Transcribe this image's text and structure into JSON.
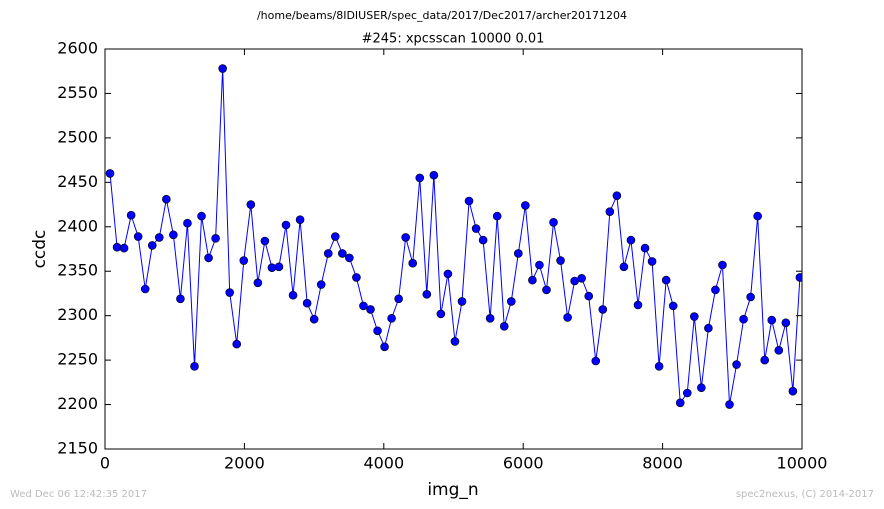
{
  "chart_data": {
    "type": "line",
    "suptitle": "/home/beams/8IDIUSER/spec_data/2017/Dec2017/archer20171204",
    "title": "#245: xpcsscan 10000 0.01",
    "x_label": "img_n",
    "y_label": "ccdc",
    "footer_left": "Wed Dec 06 12:42:35 2017",
    "footer_right": "spec2nexus, (C) 2014-2017",
    "x": [
      72,
      173,
      274,
      375,
      476,
      577,
      678,
      779,
      880,
      981,
      1082,
      1183,
      1284,
      1385,
      1486,
      1587,
      1688,
      1789,
      1890,
      1991,
      2092,
      2193,
      2294,
      2395,
      2496,
      2597,
      2698,
      2799,
      2900,
      3001,
      3102,
      3203,
      3304,
      3405,
      3506,
      3607,
      3708,
      3809,
      3910,
      4011,
      4112,
      4213,
      4314,
      4415,
      4516,
      4617,
      4718,
      4819,
      4920,
      5021,
      5122,
      5223,
      5324,
      5425,
      5526,
      5627,
      5728,
      5829,
      5930,
      6031,
      6132,
      6233,
      6334,
      6435,
      6536,
      6637,
      6738,
      6839,
      6940,
      7041,
      7142,
      7243,
      7344,
      7445,
      7546,
      7647,
      7748,
      7849,
      7950,
      8051,
      8152,
      8253,
      8354,
      8455,
      8556,
      8657,
      8758,
      8859,
      8960,
      9061,
      9162,
      9263,
      9364,
      9465,
      9566,
      9667,
      9768,
      9869,
      9970
    ],
    "series": [
      {
        "color": "#0000ff",
        "values": [
          2460,
          2377,
          2376,
          2413,
          2389,
          2330,
          2379,
          2388,
          2431,
          2391,
          2319,
          2404,
          2243,
          2412,
          2365,
          2387,
          2578,
          2326,
          2268,
          2362,
          2425,
          2337,
          2384,
          2354,
          2355,
          2402,
          2323,
          2408,
          2314,
          2296,
          2335,
          2370,
          2389,
          2370,
          2365,
          2343,
          2311,
          2307,
          2283,
          2265,
          2297,
          2319,
          2388,
          2359,
          2455,
          2324,
          2458,
          2302,
          2347,
          2271,
          2316,
          2429,
          2398,
          2385,
          2297,
          2412,
          2288,
          2316,
          2370,
          2424,
          2340,
          2357,
          2329,
          2405,
          2362,
          2298,
          2339,
          2342,
          2322,
          2249,
          2307,
          2417,
          2435,
          2355,
          2385,
          2312,
          2376,
          2361,
          2243,
          2340,
          2311,
          2202,
          2213,
          2299,
          2219,
          2286,
          2329,
          2357,
          2200,
          2245,
          2296,
          2321,
          2412,
          2250,
          2295,
          2261,
          2292,
          2215,
          2343
        ]
      }
    ],
    "xlim": [
      0,
      10000
    ],
    "xticks": [
      0,
      2000,
      4000,
      6000,
      8000,
      10000
    ],
    "ylim": [
      2150,
      2600
    ],
    "yticks": [
      2150,
      2200,
      2250,
      2300,
      2350,
      2400,
      2450,
      2500,
      2550,
      2600
    ]
  }
}
